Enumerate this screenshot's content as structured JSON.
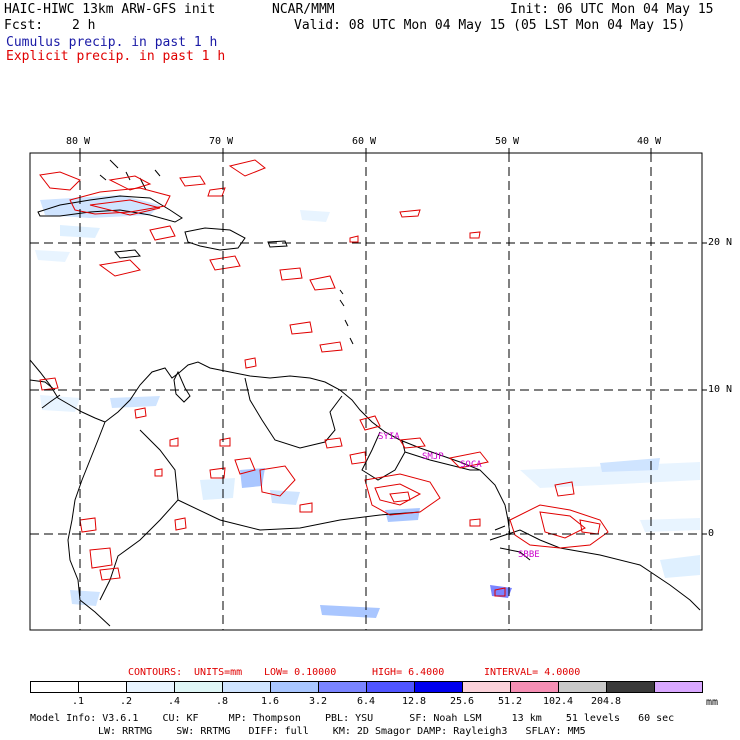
{
  "header": {
    "title": "HAIC-HIWC 13km ARW-GFS init",
    "org": "NCAR/MMM",
    "init": "Init: 06 UTC Mon 04 May 15",
    "fcst_label": "Fcst:",
    "fcst_value": "2 h",
    "valid": "Valid: 08 UTC Mon 04 May 15 (05 LST Mon 04 May 15)",
    "cumulus": "Cumulus precip. in past 1 h",
    "explicit": "Explicit precip. in past 1 h"
  },
  "colors": {
    "cumulus_text": "#1a1aa6",
    "explicit_text": "#e00000",
    "contour": "#e00000",
    "station": "#cc00cc"
  },
  "map": {
    "lon_labels": [
      "80 W",
      "70 W",
      "60 W",
      "50 W",
      "40 W"
    ],
    "lat_labels": [
      "20 N",
      "10 N",
      "0"
    ],
    "stations": [
      "SYIA",
      "SMJP",
      "SOCA",
      "SBBE"
    ]
  },
  "contour_info": {
    "label": "CONTOURS:",
    "units": "UNITS=mm",
    "low": "LOW= 0.10000",
    "high": "HIGH= 6.4000",
    "interval": "INTERVAL= 4.0000"
  },
  "legend": {
    "unit": "mm",
    "labels": [
      ".1",
      ".2",
      ".4",
      ".8",
      "1.6",
      "3.2",
      "6.4",
      "12.8",
      "25.6",
      "51.2",
      "102.4",
      "204.8"
    ],
    "colors": [
      "#ffffff",
      "#ffffff",
      "#e8f4ff",
      "#dff6f6",
      "#cfe4ff",
      "#a9c6ff",
      "#7a84ff",
      "#5055ff",
      "#0000ee",
      "#fbd2da",
      "#f58fb4",
      "#c8c8c8",
      "#3a3a3a",
      "#d9a8ff"
    ]
  },
  "footer": {
    "line1": "Model Info: V3.6.1    CU: KF     MP: Thompson    PBL: YSU      SF: Noah LSM     13 km    51 levels   60 sec",
    "line2": "LW: RRTMG    SW: RRTMG   DIFF: full    KM: 2D Smagor DAMP: Rayleigh3   SFLAY: MM5"
  }
}
